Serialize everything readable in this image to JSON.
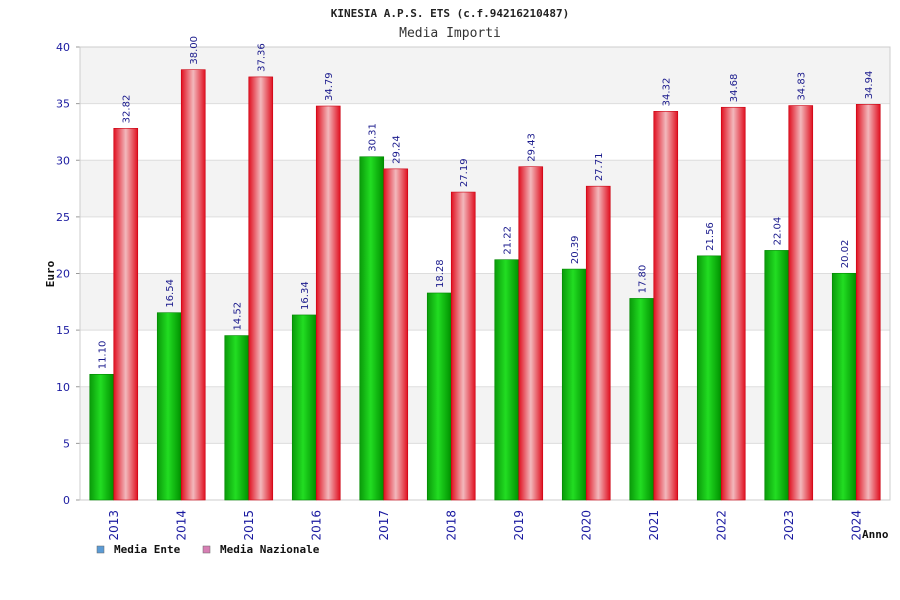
{
  "chart_data": {
    "type": "bar",
    "title": "KINESIA A.P.S. ETS (c.f.94216210487)",
    "subtitle": "Media Importi",
    "xlabel": "Anno",
    "ylabel": "Euro",
    "ylim": [
      0,
      40
    ],
    "yticks": [
      0,
      5,
      10,
      15,
      20,
      25,
      30,
      35,
      40
    ],
    "grid": true,
    "legend_position": "bottom-left",
    "categories": [
      "2013",
      "2014",
      "2015",
      "2016",
      "2017",
      "2018",
      "2019",
      "2020",
      "2021",
      "2022",
      "2023",
      "2024"
    ],
    "series": [
      {
        "name": "Media Ente",
        "color": "#1fbf1f",
        "legend_color": "#5b9bd5",
        "values": [
          11.1,
          16.54,
          14.52,
          16.34,
          30.31,
          18.28,
          21.22,
          20.39,
          17.8,
          21.56,
          22.04,
          20.02
        ],
        "labels": [
          "11.10",
          "16.54",
          "14.52",
          "16.34",
          "30.31",
          "18.28",
          "21.22",
          "20.39",
          "17.80",
          "21.56",
          "22.04",
          "20.02"
        ]
      },
      {
        "name": "Media Nazionale",
        "color": "#e8202a",
        "legend_color": "#d77fb4",
        "values": [
          32.82,
          38.0,
          37.36,
          34.79,
          29.24,
          27.19,
          29.43,
          27.71,
          34.32,
          34.68,
          34.83,
          34.94
        ],
        "labels": [
          "32.82",
          "38.00",
          "37.36",
          "34.79",
          "29.24",
          "27.19",
          "29.43",
          "27.71",
          "34.32",
          "34.68",
          "34.83",
          "34.94"
        ]
      }
    ]
  }
}
